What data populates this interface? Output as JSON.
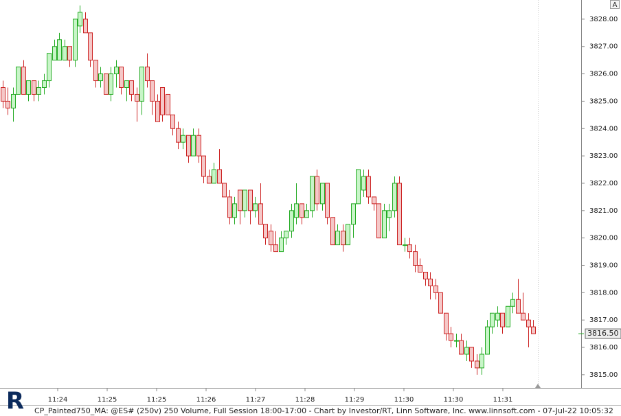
{
  "chart_data": {
    "type": "candlestick",
    "footer": "CP_Painted750_MA: @ES# (250v) 250 Volume, Full Session 18:00-17:00 - Chart by Investor/RT, Linn Software, Inc. www.linnsoft.com - 07-Jul-22 10:05:32",
    "button_label": "A",
    "logo": "R",
    "up_color": "#22aa22",
    "up_fill": "#c8f5c8",
    "down_color": "#cc2222",
    "down_fill": "#f5c8c8",
    "ylim": [
      3814.52,
      3828.7
    ],
    "xlim": [
      -0.5,
      112.3
    ],
    "yticks": [
      {
        "value": 3815,
        "label": "3815.00"
      },
      {
        "value": 3816,
        "label": "3816.00"
      },
      {
        "value": 3817,
        "label": "3817.00"
      },
      {
        "value": 3818,
        "label": "3818.00"
      },
      {
        "value": 3819,
        "label": "3819.00"
      },
      {
        "value": 3820,
        "label": "3820.00"
      },
      {
        "value": 3821,
        "label": "3821.00"
      },
      {
        "value": 3822,
        "label": "3822.00"
      },
      {
        "value": 3823,
        "label": "3823.00"
      },
      {
        "value": 3824,
        "label": "3824.00"
      },
      {
        "value": 3825,
        "label": "3825.00"
      },
      {
        "value": 3826,
        "label": "3826.00"
      },
      {
        "value": 3827,
        "label": "3827.00"
      },
      {
        "value": 3828,
        "label": "3828.00"
      }
    ],
    "xticks": [
      {
        "value": 10.7,
        "label": "11:24"
      },
      {
        "value": 20.3,
        "label": "11:25"
      },
      {
        "value": 29.9,
        "label": "11:25"
      },
      {
        "value": 39.5,
        "label": "11:26"
      },
      {
        "value": 49.1,
        "label": "11:27"
      },
      {
        "value": 58.7,
        "label": "11:28"
      },
      {
        "value": 68.3,
        "label": "11:29"
      },
      {
        "value": 77.9,
        "label": "11:30"
      },
      {
        "value": 87.5,
        "label": "11:30"
      },
      {
        "value": 97.1,
        "label": "11:31"
      }
    ],
    "last_price": {
      "value": 3816.5,
      "label": "3816.50"
    },
    "open": [
      3825.5,
      3825,
      3824.75,
      3825.25,
      3826.25,
      3825.25,
      3825.75,
      3825.25,
      3825.5,
      3825.75,
      3826.5,
      3826.5,
      3826.5,
      3827,
      3826.5,
      3827.75,
      3828,
      3827.5,
      3826.5,
      3825.75,
      3826,
      3825.25,
      3826,
      3826.25,
      3825.5,
      3825.75,
      3825.25,
      3825,
      3826.25,
      3825.75,
      3825,
      3825.5,
      3825.25,
      3824.5,
      3824,
      3823.5,
      3823.75,
      3823,
      3823.75,
      3823,
      3822.25,
      3822,
      3822.5,
      3822,
      3821.5,
      3820.75,
      3821.75,
      3821,
      3821.75,
      3821,
      3821.25,
      3820.5,
      3820.25,
      3819.75,
      3819.5,
      3820,
      3820.25,
      3820.75,
      3821.25,
      3820.75,
      3821,
      3822.25,
      3821.25,
      3822,
      3820.75,
      3819.75,
      3820.25,
      3819.75,
      3820.5,
      3821.25,
      3821.75,
      3822.25,
      3821.5,
      3821.25,
      3820,
      3820.75,
      3821,
      3822,
      3819.75,
      3819.75,
      3819.5,
      3819,
      3818.75,
      3818.5,
      3818.25,
      3818,
      3817.25,
      3816.5,
      3816.25,
      3816.25,
      3815.75,
      3816,
      3815.5,
      3815.25,
      3815.75,
      3816.75,
      3817,
      3817.25,
      3816.75,
      3817.5,
      3817.75,
      3817.25,
      3817,
      3816.75
    ],
    "high": [
      3825.75,
      3825.5,
      3825.5,
      3826.25,
      3826.5,
      3825.75,
      3825.75,
      3825.75,
      3826,
      3826.75,
      3827.25,
      3827.5,
      3827.25,
      3827,
      3828,
      3828.5,
      3828.25,
      3827.5,
      3826.5,
      3826.25,
      3826,
      3826.25,
      3826.5,
      3826.25,
      3825.75,
      3825.75,
      3825.5,
      3826.25,
      3826.75,
      3825.75,
      3825.25,
      3825.5,
      3825.25,
      3824.5,
      3824.25,
      3824,
      3823.75,
      3824,
      3824,
      3823,
      3822.5,
      3822.75,
      3823.25,
      3822,
      3821.75,
      3821.5,
      3821.75,
      3821.75,
      3821.75,
      3821.5,
      3822,
      3820.5,
      3820.5,
      3820.25,
      3820.25,
      3820.25,
      3821.25,
      3822,
      3821.25,
      3821.25,
      3822.25,
      3822.5,
      3822,
      3822,
      3820.75,
      3820.5,
      3820.5,
      3820.5,
      3821.25,
      3822.5,
      3822.5,
      3822.5,
      3821.5,
      3821.25,
      3821.25,
      3821.25,
      3822.25,
      3822.25,
      3820,
      3820,
      3819.75,
      3819.25,
      3818.75,
      3818.75,
      3818.5,
      3818,
      3817.25,
      3816.75,
      3816.5,
      3816.5,
      3816.25,
      3816,
      3815.75,
      3816,
      3817,
      3817.25,
      3817.5,
      3817.25,
      3817.5,
      3818,
      3818.5,
      3818,
      3817.25,
      3817
    ],
    "low": [
      3824.75,
      3824.5,
      3824.25,
      3825.25,
      3825.25,
      3825,
      3825,
      3825,
      3825.25,
      3825.5,
      3826.5,
      3826.5,
      3826.5,
      3826.25,
      3826.25,
      3827.5,
      3827.5,
      3826.25,
      3825.5,
      3825.5,
      3825.25,
      3825,
      3825.5,
      3825.25,
      3825,
      3825,
      3824.25,
      3824.5,
      3825.5,
      3824.5,
      3824.25,
      3824.25,
      3824.5,
      3823.75,
      3823.25,
      3823.25,
      3822.75,
      3823,
      3822.75,
      3822,
      3822,
      3822,
      3822,
      3821.5,
      3820.5,
      3820.5,
      3820.5,
      3820.75,
      3820.5,
      3820.75,
      3820.5,
      3819.75,
      3819.5,
      3819.5,
      3819.5,
      3819.75,
      3820,
      3820.5,
      3820.5,
      3820.75,
      3820.75,
      3821,
      3821,
      3820.5,
      3819.75,
      3819.75,
      3819.5,
      3819.75,
      3820,
      3821.25,
      3821.5,
      3821.25,
      3821,
      3820,
      3820,
      3820.25,
      3820.75,
      3819.75,
      3819.5,
      3819.25,
      3818.75,
      3818.75,
      3818.25,
      3817.75,
      3817.75,
      3817.25,
      3816.25,
      3816,
      3816,
      3815.75,
      3815.5,
      3815.25,
      3815,
      3815,
      3815.75,
      3816.5,
      3816.75,
      3816.5,
      3816.75,
      3817.25,
      3817.25,
      3817,
      3816,
      3816.5
    ],
    "close": [
      3825,
      3824.75,
      3825.25,
      3826.25,
      3825.25,
      3825.75,
      3825.25,
      3825.5,
      3825.75,
      3826.75,
      3827,
      3827.25,
      3827,
      3826.5,
      3828,
      3828.25,
      3827.5,
      3826.5,
      3825.75,
      3826,
      3825.25,
      3826,
      3826.25,
      3825.5,
      3825.75,
      3825.25,
      3825,
      3826.25,
      3825.75,
      3825,
      3824.25,
      3824.5,
      3824.5,
      3824,
      3823.5,
      3823.75,
      3823,
      3823.75,
      3823,
      3822.25,
      3822,
      3822.5,
      3822,
      3821.5,
      3820.75,
      3821.25,
      3821,
      3821.75,
      3821,
      3821.25,
      3820.5,
      3820,
      3819.75,
      3819.5,
      3820,
      3820.25,
      3821,
      3821.25,
      3820.75,
      3821,
      3822.25,
      3821.25,
      3822,
      3820.75,
      3819.75,
      3820.25,
      3819.75,
      3820.5,
      3821.25,
      3822.5,
      3822.25,
      3821.5,
      3821.25,
      3820,
      3821,
      3821,
      3822,
      3819.75,
      3819.75,
      3819.5,
      3819,
      3818.75,
      3818.5,
      3818.25,
      3818,
      3817.25,
      3816.5,
      3816.25,
      3816.25,
      3815.75,
      3816,
      3815.5,
      3815.25,
      3815.75,
      3816.75,
      3817.25,
      3817.25,
      3816.75,
      3817.5,
      3817.75,
      3817.25,
      3817,
      3816.75,
      3816.5
    ]
  }
}
